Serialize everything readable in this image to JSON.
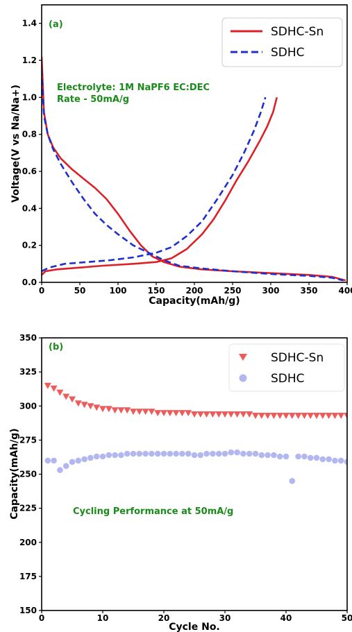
{
  "colors": {
    "sn_line": "#dd1f26",
    "hc_line": "#1f2fcc",
    "sn_marker": "#ef5b5b",
    "hc_marker": "#b3b7f0",
    "annotation": "#1a8a1a"
  },
  "chart_data": [
    {
      "type": "line",
      "panel_label": "(a)",
      "xlabel": "Capacity(mAh/g)",
      "ylabel": "Voltage(V vs Na/Na+)",
      "xlim": [
        0,
        400
      ],
      "ylim": [
        0,
        1.5
      ],
      "xticks": [
        "0",
        "50",
        "100",
        "150",
        "200",
        "250",
        "300",
        "350",
        "400"
      ],
      "yticks": [
        "0.0",
        "0.2",
        "0.4",
        "0.6",
        "0.8",
        "1.0",
        "1.2",
        "1.4"
      ],
      "annotation_lines": [
        "Electrolyte: 1M NaPF6 EC:DEC",
        "Rate - 50mA/g"
      ],
      "legend_position": "top-right",
      "series": [
        {
          "name": "SDHC-Sn",
          "style": "solid",
          "discharge": [
            [
              0,
              1.22
            ],
            [
              3,
              0.92
            ],
            [
              8,
              0.8
            ],
            [
              15,
              0.73
            ],
            [
              25,
              0.67
            ],
            [
              40,
              0.61
            ],
            [
              55,
              0.56
            ],
            [
              70,
              0.51
            ],
            [
              85,
              0.45
            ],
            [
              100,
              0.37
            ],
            [
              115,
              0.28
            ],
            [
              130,
              0.2
            ],
            [
              145,
              0.14
            ],
            [
              160,
              0.11
            ],
            [
              180,
              0.085
            ],
            [
              210,
              0.07
            ],
            [
              250,
              0.06
            ],
            [
              300,
              0.05
            ],
            [
              350,
              0.04
            ],
            [
              380,
              0.03
            ],
            [
              398,
              0.01
            ]
          ],
          "charge": [
            [
              0,
              0.04
            ],
            [
              5,
              0.06
            ],
            [
              20,
              0.07
            ],
            [
              50,
              0.08
            ],
            [
              80,
              0.09
            ],
            [
              120,
              0.1
            ],
            [
              150,
              0.11
            ],
            [
              170,
              0.13
            ],
            [
              190,
              0.18
            ],
            [
              210,
              0.26
            ],
            [
              225,
              0.34
            ],
            [
              240,
              0.44
            ],
            [
              255,
              0.55
            ],
            [
              270,
              0.65
            ],
            [
              285,
              0.76
            ],
            [
              295,
              0.84
            ],
            [
              303,
              0.92
            ],
            [
              308,
              1.0
            ]
          ]
        },
        {
          "name": "SDHC",
          "style": "dashed",
          "discharge": [
            [
              0,
              1.15
            ],
            [
              3,
              0.9
            ],
            [
              8,
              0.8
            ],
            [
              15,
              0.72
            ],
            [
              25,
              0.64
            ],
            [
              40,
              0.54
            ],
            [
              55,
              0.45
            ],
            [
              70,
              0.37
            ],
            [
              85,
              0.31
            ],
            [
              100,
              0.26
            ],
            [
              120,
              0.2
            ],
            [
              140,
              0.16
            ],
            [
              160,
              0.12
            ],
            [
              180,
              0.09
            ],
            [
              210,
              0.075
            ],
            [
              250,
              0.06
            ],
            [
              300,
              0.045
            ],
            [
              350,
              0.035
            ],
            [
              380,
              0.025
            ],
            [
              395,
              0.01
            ]
          ],
          "charge": [
            [
              0,
              0.06
            ],
            [
              10,
              0.08
            ],
            [
              30,
              0.1
            ],
            [
              60,
              0.11
            ],
            [
              90,
              0.12
            ],
            [
              120,
              0.135
            ],
            [
              150,
              0.16
            ],
            [
              170,
              0.19
            ],
            [
              190,
              0.25
            ],
            [
              210,
              0.33
            ],
            [
              230,
              0.45
            ],
            [
              250,
              0.58
            ],
            [
              265,
              0.7
            ],
            [
              278,
              0.82
            ],
            [
              287,
              0.92
            ],
            [
              293,
              1.0
            ]
          ]
        }
      ]
    },
    {
      "type": "scatter",
      "panel_label": "(b)",
      "xlabel": "Cycle No.",
      "ylabel": "Capacity(mAh/g)",
      "xlim": [
        0,
        50
      ],
      "ylim": [
        150,
        350
      ],
      "xticks": [
        "0",
        "10",
        "20",
        "30",
        "40",
        "50"
      ],
      "yticks": [
        "150",
        "175",
        "200",
        "225",
        "250",
        "275",
        "300",
        "325",
        "350"
      ],
      "annotation_lines": [
        "Cycling Performance at 50mA/g"
      ],
      "legend_position": "top-right",
      "series": [
        {
          "name": "SDHC-Sn",
          "marker": "triangle-down",
          "x": [
            1,
            2,
            3,
            4,
            5,
            6,
            7,
            8,
            9,
            10,
            11,
            12,
            13,
            14,
            15,
            16,
            17,
            18,
            19,
            20,
            21,
            22,
            23,
            24,
            25,
            26,
            27,
            28,
            29,
            30,
            31,
            32,
            33,
            34,
            35,
            36,
            37,
            38,
            39,
            40,
            41,
            42,
            43,
            44,
            45,
            46,
            47,
            48,
            49,
            50
          ],
          "y": [
            315,
            313,
            310,
            307,
            305,
            302,
            301,
            300,
            299,
            298,
            298,
            297,
            297,
            297,
            296,
            296,
            296,
            296,
            295,
            295,
            295,
            295,
            295,
            295,
            294,
            294,
            294,
            294,
            294,
            294,
            294,
            294,
            294,
            294,
            293,
            293,
            293,
            293,
            293,
            293,
            293,
            293,
            293,
            293,
            293,
            293,
            293,
            293,
            293,
            293
          ]
        },
        {
          "name": "SDHC",
          "marker": "circle",
          "x": [
            1,
            2,
            3,
            4,
            5,
            6,
            7,
            8,
            9,
            10,
            11,
            12,
            13,
            14,
            15,
            16,
            17,
            18,
            19,
            20,
            21,
            22,
            23,
            24,
            25,
            26,
            27,
            28,
            29,
            30,
            31,
            32,
            33,
            34,
            35,
            36,
            37,
            38,
            39,
            40,
            41,
            42,
            43,
            44,
            45,
            46,
            47,
            48,
            49,
            50
          ],
          "y": [
            260,
            260,
            253,
            256,
            259,
            260,
            261,
            262,
            263,
            263,
            264,
            264,
            264,
            265,
            265,
            265,
            265,
            265,
            265,
            265,
            265,
            265,
            265,
            265,
            264,
            264,
            265,
            265,
            265,
            265,
            266,
            266,
            265,
            265,
            265,
            264,
            264,
            264,
            263,
            263,
            245,
            263,
            263,
            262,
            262,
            261,
            261,
            260,
            260,
            259
          ]
        }
      ]
    }
  ]
}
